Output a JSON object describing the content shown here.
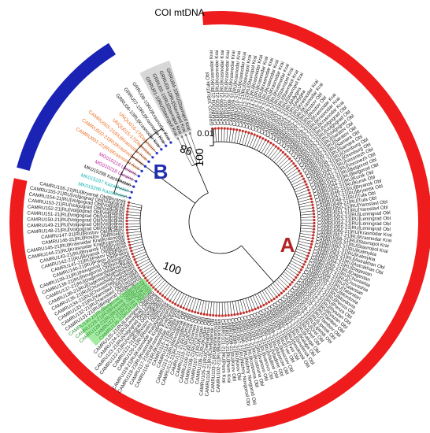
{
  "figure": {
    "title": "COI mtDNA",
    "clade_a_label": "A",
    "clade_b_label": "B",
    "scale_label": "0.01",
    "bootstrap_labels": [
      "100",
      "98",
      "100"
    ],
    "colors": {
      "clade_a": "#ee1c1c",
      "clade_b": "#1a23b4",
      "outgroup": "#c9c9c9",
      "label_a": "#b32424",
      "label_b": "#1f2fb0",
      "node_a": "#c0302c",
      "node_b": "#2233cc",
      "highlight_green": "#66dd66",
      "highlight_orange": "#e8702a",
      "highlight_magenta": "#c02aa0",
      "highlight_cyan": "#19b3b3",
      "tree": "#000000"
    }
  },
  "leaves": {
    "outgroup": [
      "GRRU01-10RU|Stavropol Krai",
      "GRRU02-10RU|Stavropol Krai",
      "GRRU03-10RU|Stavropol Krai",
      "GRRU04-10RU|Stavropol Krai"
    ],
    "clade_b": [
      "MK015296 Kazakhstan",
      "MK015297 Kazakhstan",
      "MK015298 Kazakhstan",
      "MG010218 Ukraine",
      "MG010219 Ukraine",
      "CAMRU001-21|RU|Krasnodar Krai",
      "CAMRU002-21|RU|Krasnodar Krai",
      "CAMRU003-21|RU|Krasnodar Krai",
      "UNQU015-17|Dagestan",
      "UNQU016-17|Dagestan",
      "GRRU06-10RU|Krasnodar Krai",
      "GRRU07-10RU|Krasnodar Krai",
      "GRRU08-10RU|Krasnodar Krai"
    ],
    "clade_a": [
      "GRRU10-10RU|Tula Obl",
      "CAMRU004-21|RU|Krasnodar Krai",
      "CAMRU005-21|RU|Krasnodar Krai",
      "CAMRU006-21|RU|Krasnodar Krai",
      "CAMRU007-21|RU|Krasnodar Krai",
      "CAMRU008-21|RU|Krasnodar Krai",
      "CAMRU009-21|RU|Krasnodar Krai",
      "CAMRU010-21|RU|Krasnodar Krai",
      "CAMRU011-21|RU|Stavropol Krai",
      "CAMRU012-21|RU|Stavropol Krai",
      "CAMRU013-21|RU|Krasnodar Krai",
      "CAMRU014-21|RU|Krasnodar Krai",
      "CAMRU015-21|RU|Krasnodar Krai",
      "CAMRU016-21|RU|Krasnodar Krai",
      "CAMRU017-21|RU|Krasnodar Krai",
      "CAMRU018-21|RU|Krasnodar Krai",
      "CAMRU019-21|RU|Stavropol Krai",
      "CAMRU020-21|RU|Stavropol Krai",
      "CAMRU021-21|RU|Stavropol Krai",
      "CAMRU022-21|RU|Adygea",
      "CAMRU023-21|RU|Adygea",
      "CAMRU024-21|RU|Krasnodar Krai",
      "CAMRU025-21|RU|Krasnodar Krai",
      "CAMRU026-21|RU|Rostov Obl",
      "CAMRU027-21|RU|Rostov Obl",
      "CAMRU028-21|RU|Krasnodar Krai",
      "CAMRU029-21|RU|Krasnodar Krai",
      "CAMRU030-21|RU|Krasnodar Krai",
      "CAMRU031-21|RU|Volgograd Obl",
      "CAMRU032-21|RU|Volgograd Obl",
      "CAMRU033-21|RU|Volgograd Obl",
      "CAMRU034-21|RU|Saratov Obl",
      "CAMRU035-21|RU|Saratov Obl",
      "CAMRU036-21|RU|Samara Obl",
      "CAMRU037-21|RU|Samara Obl",
      "CAMRU038-21|RU|Orenburg Obl",
      "CAMRU039-21|RU|Orenburg Obl",
      "CAMRU040-21|RU|Voronezh Obl",
      "CAMRU041-21|RU|Voronezh Obl",
      "CAMRU042-21|RU|Belgorod Obl",
      "CAMRU043-21|RU|Belgorod Obl",
      "CAMRU044-21|RU|Kursk Obl",
      "CAMRU045-21|RU|Kursk Obl",
      "CAMRU046-21|RU|Bryansk Obl",
      "CAMRU047-21|RU|Bryansk Obl",
      "CAMRU048-21|RU|Tula Obl",
      "CAMRU049-21|RU|Tula Obl",
      "CAMRU050-21|RU|Yaroslavl Obl",
      "CAMRU051-21|RU|Yaroslavl Obl",
      "CAMRU052-21|RU|Leningrad Obl",
      "CAMRU053-21|RU|Leningrad Obl",
      "CAMRU054-21|RU|Leningrad Obl",
      "CAMRU055-21|RU|Leningrad Obl",
      "CAMRU056-21|RU|Krasnodar Krai",
      "CAMRU057-21|RU|Krasnodar Krai",
      "CAMRU058-21|RU|Stavropol Krai",
      "CAMRU059-21|RU|Stavropol Krai",
      "CAMRU060-21|RU|Kalmykia",
      "CAMRU061-21|RU|Kalmykia",
      "CAMRU062-21|RU|Astrakhan Obl",
      "CAMRU063-21|RU|Astrakhan Obl",
      "CAMRU064-21|RU|Dagestan",
      "CAMRU065-21|RU|Dagestan",
      "CAMRU066-21|RU|Chuvashia",
      "CAMRU067-21|RU|Chuvashia",
      "CAMRU068-21|RU|Tatarstan",
      "CAMRU069-21|RU|Tatarstan",
      "CAMRU070-21|RU|Mordovia",
      "CAMRU071-21|RU|Mordovia",
      "CAMRU072-21|RU|Penza Obl",
      "CAMRU073-21|RU|Penza Obl",
      "CAMRU074-21|RU|Ryazan Obl",
      "CAMRU075-21|RU|Ryazan Obl",
      "CAMRU076-21|RU|Tambov Obl",
      "CAMRU077-21|RU|Tambov Obl",
      "CAMRU078-21|RU|Lipetsk Obl",
      "CAMRU079-21|RU|Lipetsk Obl",
      "CAMRU080-21|RU|Orel Obl",
      "CAMRU081-21|RU|Orel Obl",
      "CAMRU082-21|RU|Kaluga Obl",
      "CAMRU083-21|RU|Kaluga Obl",
      "CAMRU084-21|RU|Smolensk Obl",
      "CAMRU085-21|RU|Smolensk Obl",
      "CAMRU086-21|RU|Tver Obl",
      "CAMRU087-21|RU|Tver Obl",
      "CAMRU088-21|RU|Moscow Obl",
      "CAMRU089-21|RU|Moscow Obl",
      "CAMRU090-21|RU|Vladimir Obl",
      "CAMRU091-21|RU|Vladimir Obl",
      "CAMRU092-21|RU|Ivanovo Obl",
      "CAMRU093-21|RU|Ivanovo Obl",
      "CAMRU094-21|RU|Kostroma Obl",
      "CAMRU095-21|RU|Kostroma Obl",
      "CAMRU096-21|RU|Nizhny Novgorod Obl",
      "CAMRU097-21|RU|Nizhny Novgorod Obl",
      "CAMRU098-21|RU|Kirov Obl",
      "CAMRU099-21|RU|Kirov Obl",
      "CAMRU100-21|RU|Perm Krai",
      "CAMRU101-21|RU|Perm Krai",
      "CAMRU102-21|RU|Bashkortostan",
      "CAMRU103-21|RU|Bashkortostan",
      "CAMRU104-21|RU|Chelyabinsk Obl",
      "CAMRU105-21|RU|Chelyabinsk Obl",
      "CAMRU106-21|RU|Kurgan Obl",
      "CAMRU107-21|RU|Kurgan Obl",
      "CAMRU108-21|RU|Tyumen Obl",
      "CAMRU109-21|RU|Tyumen Obl",
      "CAMRU110-21|RU|Omsk Obl",
      "CAMRU111-21|RU|Omsk Obl",
      "CAMRU112-21|RU|Novosibirsk Obl",
      "CAMRU113-21|RU|Novosibirsk Obl",
      "CAMRU114-21|RU|Altai Krai",
      "CAMRU115-21|RU|Altai Krai",
      "CAMRU116-21|RU|Krasnodar Krai|Yeysk",
      "CAMRU117-21|RU|Krasnodar Krai|Yeysk",
      "CAMRU118-21|RU|Krasnodar Krai|Apsheronsk",
      "CAMRU119-21|RU|Krasnodar Krai|Apsheronsk",
      "CAMRU120-21|RU|Rostov Obl|Rostov",
      "CAMRU121-21|RU|Rostov Obl|Rostov",
      "CAMRU122-21|RU|Volgograd Obl|Volgograd",
      "CAMRU123-21|RU|Volgograd Obl|Volgograd",
      "CAMRU124-21|RU|Leningrad Obl|StPb",
      "CAMRU125-21|RU|Leningrad Obl|StPb",
      "CAMRU126-21|RU|Tula Obl|Tula",
      "CAMRU127-21|RU|Tula Obl|Tula",
      "CAMRU128-21|RU|Bryansk Obl|Bryansk",
      "CAMRU129-21|RU|Bryansk Obl|Bryansk",
      "CAMRU130-21|RU|Belgorod Obl|Belgorod",
      "CAMRU131-21|RU|Belgorod Obl|Belgorod",
      "CAMRU132-21|RU|Yaroslavl Obl|Yaroslavl",
      "CAMRU133-21|RU|Yaroslavl Obl|Yaroslavl",
      "CAMRU134-21|RU|Chuvashia|Cheboksary",
      "CAMRU135-21|RU|Chuvashia|Cheboksary",
      "CAMRU136-21|RU|Dagestan|Makhachkala",
      "CAMRU137-21|RU|Dagestan|Makhachkala",
      "CAMRU138-21|RU|Novgorod Obl|Novgorod",
      "CAMRU139-21|RU|Novgorod Obl|Novgorod",
      "CAMRU140-21|RU|Pskov Obl|Pskov",
      "CAMRU141-21|RU|Pskov Obl|Pskov",
      "CAMRU142-21|RU|Bryansk Obl|Bryansk",
      "CAMRU143-21|RU|Bryansk Obl|Bryansk",
      "CAMRU144-21|RU|Krasnodar Krai|Krasnodar",
      "CAMRU145-21|RU|Krasnodar Krai|Krasnodar",
      "CAMRU146-21|RU|Rostov Obl|Rostov",
      "CAMRU147-21|RU|Rostov Obl|Rostov",
      "CAMRU148-21|RU|Volgograd Obl|Volgograd",
      "CAMRU149-21|RU|Volgograd Obl|Volgograd",
      "CAMRU150-21|RU|Volgograd Obl|Volgograd",
      "CAMRU151-21|RU|Volgograd Obl|Volgograd",
      "CAMRU152-21|RU|Volgograd Obl|Volgograd",
      "CAMRU153-21|RU|Volgograd Obl|Volgograd",
      "CAMRU154-21|RU|Volgograd Obl|Volgograd",
      "CAMRU155-21|RU|Volgograd Obl|Volgograd",
      "CAMRU156-21|RU|Bryansk Obl|Bryansk"
    ]
  },
  "leaf_highlights": {
    "clade_b": {
      "0": "#19b3b3",
      "1": "#19b3b3",
      "3": "#c02aa0",
      "4": "#c02aa0",
      "5": "#e8702a",
      "6": "#e8702a",
      "7": "#e8702a",
      "8": "#e8702a",
      "9": "#e8702a"
    },
    "clade_a_green_range": [
      123,
      127
    ]
  }
}
